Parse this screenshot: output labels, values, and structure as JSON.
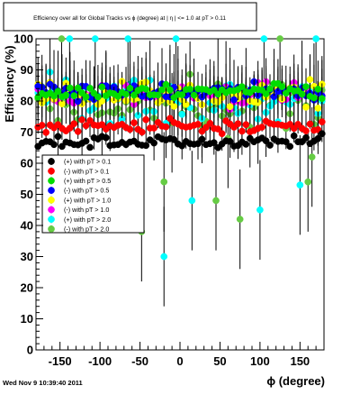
{
  "footer": {
    "timestamp": "Wed Nov  9 10:39:40 2011"
  },
  "chart_data": {
    "type": "scatter",
    "title": "Efficiency over all for Global Tracks vs ϕ (degree) at | η | <= 1.0 at pT > 0.11",
    "xlabel": "ϕ (degree)",
    "ylabel": "Efficiency (%)",
    "xlim": [
      -180,
      180
    ],
    "ylim": [
      0,
      100
    ],
    "x_ticks": [
      -150,
      -100,
      -50,
      0,
      50,
      100,
      150
    ],
    "y_ticks": [
      0,
      10,
      20,
      30,
      40,
      50,
      60,
      70,
      80,
      90,
      100
    ],
    "grid": false,
    "error_bars": true,
    "legend_position": "middle-left",
    "series": [
      {
        "name": "(+) with pT > 0.1",
        "color": "#000000",
        "mean": 67,
        "spread": 3,
        "min": 60,
        "max": 72,
        "err": 0.8
      },
      {
        "name": "(-) with pT > 0.1",
        "color": "#ff0000",
        "mean": 72,
        "spread": 3,
        "min": 64,
        "max": 78,
        "err": 1.0
      },
      {
        "name": "(+) with pT > 0.5",
        "color": "#00dd00",
        "mean": 83,
        "spread": 4,
        "min": 75,
        "max": 90,
        "err": 3
      },
      {
        "name": "(-) with pT > 0.5",
        "color": "#0000ff",
        "mean": 83,
        "spread": 4,
        "min": 75,
        "max": 90,
        "err": 3
      },
      {
        "name": "(+) with pT > 1.0",
        "color": "#ffff00",
        "mean": 82,
        "spread": 6,
        "min": 62,
        "max": 95,
        "err": 6
      },
      {
        "name": "(-) with pT > 1.0",
        "color": "#ff00ff",
        "mean": 82,
        "spread": 6,
        "min": 62,
        "max": 95,
        "err": 6
      },
      {
        "name": "(+) with pT > 2.0",
        "color": "#00ffff",
        "mean": 80,
        "spread": 12,
        "min": 30,
        "max": 100,
        "err": 10,
        "outliers": [
          [
            -138,
            100
          ],
          [
            -106,
            100
          ],
          [
            -65,
            100
          ],
          [
            -20,
            30
          ],
          [
            -5,
            100
          ],
          [
            15,
            48
          ],
          [
            100,
            45
          ],
          [
            105,
            100
          ],
          [
            150,
            53
          ],
          [
            170,
            100
          ]
        ]
      },
      {
        "name": "(-) with pT > 2.0",
        "color": "#66cc44",
        "mean": 79,
        "spread": 12,
        "min": 35,
        "max": 100,
        "err": 10,
        "outliers": [
          [
            -148,
            100
          ],
          [
            -48,
            38
          ],
          [
            -20,
            54
          ],
          [
            -10,
            73
          ],
          [
            45,
            48
          ],
          [
            60,
            68
          ],
          [
            75,
            42
          ],
          [
            125,
            100
          ],
          [
            160,
            54
          ],
          [
            165,
            62
          ]
        ]
      }
    ]
  }
}
